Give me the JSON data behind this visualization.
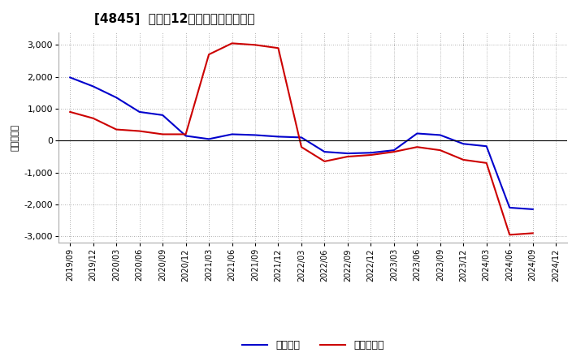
{
  "title": "[4845]  利益だ12か月移動合計の推移",
  "ylabel": "（百万円）",
  "x_labels": [
    "2019/09",
    "2019/12",
    "2020/03",
    "2020/06",
    "2020/09",
    "2020/12",
    "2021/03",
    "2021/06",
    "2021/09",
    "2021/12",
    "2022/03",
    "2022/06",
    "2022/09",
    "2022/12",
    "2023/03",
    "2023/06",
    "2023/09",
    "2023/12",
    "2024/03",
    "2024/06",
    "2024/09",
    "2024/12"
  ],
  "keijo_rieki": [
    1980,
    1700,
    1350,
    900,
    800,
    150,
    50,
    200,
    175,
    125,
    100,
    -350,
    -400,
    -380,
    -300,
    225,
    175,
    -100,
    -175,
    -2100,
    -2150,
    null
  ],
  "touki_jurieki": [
    900,
    700,
    350,
    300,
    200,
    200,
    2700,
    3050,
    3000,
    2900,
    -200,
    -650,
    -500,
    -450,
    -350,
    -200,
    -300,
    -600,
    -700,
    -2950,
    -2900,
    null
  ],
  "ylim": [
    -3200,
    3400
  ],
  "yticks": [
    -3000,
    -2000,
    -1000,
    0,
    1000,
    2000,
    3000
  ],
  "line_color_keijo": "#0000cc",
  "line_color_touki": "#cc0000",
  "bg_color": "#ffffff",
  "grid_color": "#999999",
  "legend_keijo": "経常利益",
  "legend_touki": "当期純利益"
}
